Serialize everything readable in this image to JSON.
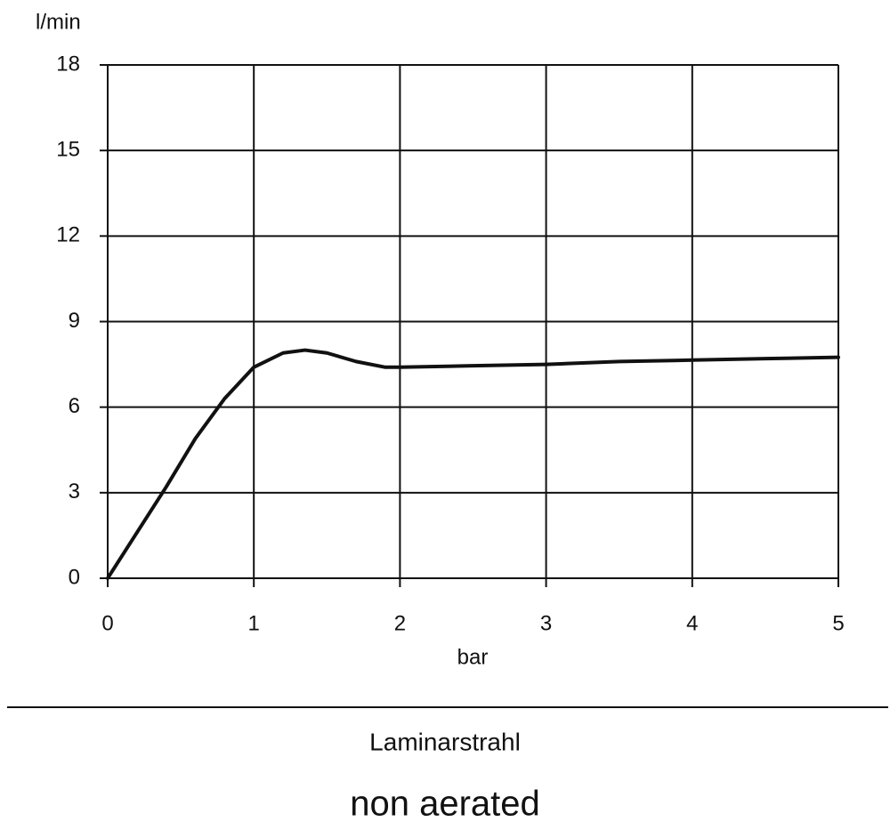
{
  "chart_data": {
    "type": "line",
    "x_label": "bar",
    "y_label": "l/min",
    "x": [
      0,
      0.2,
      0.4,
      0.6,
      0.8,
      1,
      1.2,
      1.35,
      1.5,
      1.7,
      1.9,
      2,
      2.5,
      3,
      3.5,
      4,
      4.5,
      5
    ],
    "values": [
      0,
      1.6,
      3.2,
      4.9,
      6.3,
      7.4,
      7.9,
      8.0,
      7.9,
      7.6,
      7.4,
      7.4,
      7.45,
      7.5,
      7.6,
      7.65,
      7.7,
      7.75
    ],
    "color": "#111111",
    "xlim": [
      0,
      5
    ],
    "xticks": [
      0,
      1,
      2,
      3,
      4,
      5
    ],
    "ylim": [
      0,
      18
    ],
    "yticks": [
      0,
      3,
      6,
      9,
      12,
      15,
      18
    ],
    "grid": true
  },
  "caption": {
    "title": "Laminarstrahl",
    "subtitle": "non aerated"
  }
}
